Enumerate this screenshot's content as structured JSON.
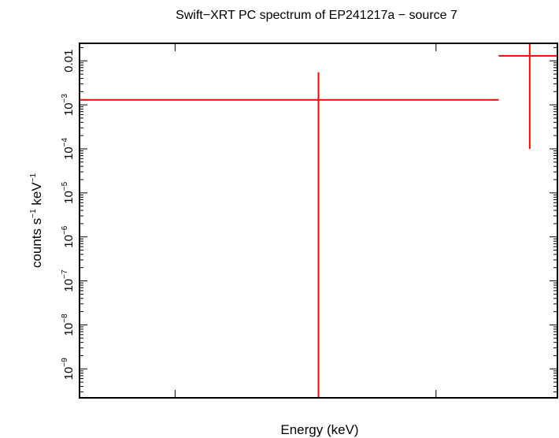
{
  "chart_data": {
    "type": "scatter",
    "title": "Swift−XRT PC spectrum of EP241217a − source 7",
    "xlabel": "Energy (keV)",
    "ylabel": {
      "pre": "counts s",
      "sup1": "−1",
      "mid": " keV",
      "sup2": "−1"
    },
    "yscale": "log",
    "ylim": [
      2.2e-10,
      0.025
    ],
    "y_ticks": [
      {
        "value": 1e-09,
        "base": "10",
        "exp": "−9"
      },
      {
        "value": 1e-08,
        "base": "10",
        "exp": "−8"
      },
      {
        "value": 1e-07,
        "base": "10",
        "exp": "−7"
      },
      {
        "value": 1e-06,
        "base": "10",
        "exp": "−6"
      },
      {
        "value": 1e-05,
        "base": "10",
        "exp": "−5"
      },
      {
        "value": 0.0001,
        "base": "10",
        "exp": "−4"
      },
      {
        "value": 0.001,
        "base": "10",
        "exp": "−3"
      },
      {
        "value": 0.01,
        "text": "0.01"
      }
    ],
    "x_ticks_unlabeled": 3,
    "points": [
      {
        "x": 0.5,
        "xlo": 0.0,
        "xhi": 0.877,
        "y": 0.0013,
        "ylo": 2.2e-10,
        "yhi": 0.0055
      },
      {
        "x": 0.942,
        "xlo": 0.877,
        "xhi": 1.0,
        "y": 0.013,
        "ylo": 0.0001,
        "yhi": 0.025
      }
    ],
    "color": "#ff0000"
  }
}
